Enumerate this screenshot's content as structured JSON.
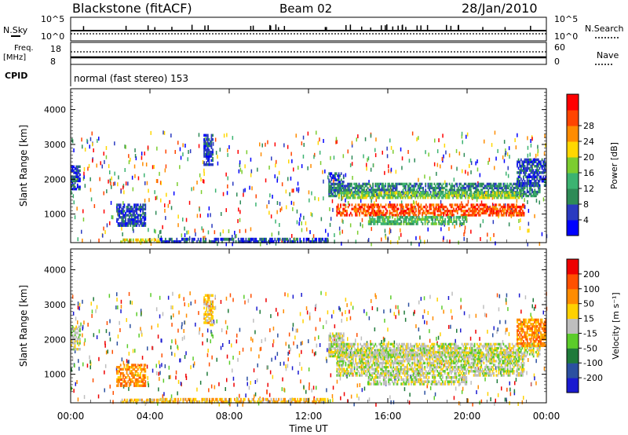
{
  "header": {
    "station": "Blackstone (fitACF)",
    "beam": "Beam 02",
    "date": "28/Jan/2010"
  },
  "top_panels": {
    "nsky": {
      "label": "N.Sky",
      "ticks": [
        "10^5",
        "10^0"
      ]
    },
    "nsearch": {
      "label": "N.Search",
      "ticks": [
        "10^5",
        "10^0"
      ]
    },
    "freq": {
      "label_line1": "Freq.",
      "label_line2": "[MHz]",
      "ticks": [
        "18",
        "8"
      ]
    },
    "nave": {
      "label": "Nave",
      "ticks": [
        "60",
        "0"
      ]
    },
    "cpid": {
      "label": "CPID",
      "mode_text": "normal (fast stereo) 153"
    }
  },
  "x_axis": {
    "title": "Time UT",
    "ticks": [
      "00:00",
      "04:00",
      "08:00",
      "12:00",
      "16:00",
      "20:00",
      "00:00"
    ],
    "hours": [
      0,
      4,
      8,
      12,
      16,
      20,
      24
    ]
  },
  "colors": {
    "power": [
      "#0000ff",
      "#2a3ac0",
      "#2e8b57",
      "#3cb371",
      "#7ccd2f",
      "#ffd700",
      "#ff8c00",
      "#ff4500",
      "#ff0000"
    ],
    "velocity": [
      "#1a1ad0",
      "#2b50a0",
      "#1f7a3a",
      "#5bcc2a",
      "#bebebe",
      "#ffd100",
      "#ff8c00",
      "#ff5000",
      "#ee0000"
    ]
  },
  "chart_data": [
    {
      "type": "heatmap",
      "name": "power",
      "ylabel": "Slant Range [km]",
      "yticks": [
        1000,
        2000,
        3000,
        4000
      ],
      "ylim": [
        180,
        4600
      ],
      "xlim": [
        0,
        24
      ],
      "colorbar_label": "Power [dB]",
      "colorbar_ticks": [
        "28",
        "24",
        "20",
        "16",
        "12",
        "8",
        "4"
      ],
      "colorbar_levels": [
        0,
        4,
        8,
        12,
        16,
        20,
        24,
        28,
        32
      ],
      "regions": [
        {
          "x": [
            0.0,
            0.5
          ],
          "y": [
            1700,
            2400
          ],
          "level": 1
        },
        {
          "x": [
            2.3,
            3.8
          ],
          "y": [
            650,
            1300
          ],
          "level": 1
        },
        {
          "x": [
            6.7,
            7.2
          ],
          "y": [
            2400,
            3300
          ],
          "level": 1
        },
        {
          "x": [
            13.0,
            13.8
          ],
          "y": [
            1600,
            2200
          ],
          "level": 1
        },
        {
          "x": [
            13.0,
            23.7
          ],
          "y": [
            1500,
            1900
          ],
          "level": 2
        },
        {
          "x": [
            13.5,
            22.8
          ],
          "y": [
            1450,
            1650
          ],
          "level": 4
        },
        {
          "x": [
            13.4,
            22.9
          ],
          "y": [
            950,
            1300
          ],
          "level": 7
        },
        {
          "x": [
            15.0,
            20.0
          ],
          "y": [
            700,
            950
          ],
          "level": 3
        },
        {
          "x": [
            22.5,
            24.0
          ],
          "y": [
            1800,
            2600
          ],
          "level": 1
        },
        {
          "x": [
            2.5,
            4.5
          ],
          "y": [
            180,
            300
          ],
          "level": 5
        },
        {
          "x": [
            4.5,
            13.0
          ],
          "y": [
            180,
            320
          ],
          "level": 1
        }
      ]
    },
    {
      "type": "heatmap",
      "name": "velocity",
      "ylabel": "Slant Range [km]",
      "yticks": [
        1000,
        2000,
        3000,
        4000
      ],
      "ylim": [
        180,
        4600
      ],
      "xlim": [
        0,
        24
      ],
      "colorbar_label": "Velocity [m s⁻¹]",
      "colorbar_ticks": [
        "200",
        "100",
        "50",
        "15",
        "-15",
        "-50",
        "-100",
        "-200"
      ],
      "regions": [
        {
          "x": [
            0.0,
            0.5
          ],
          "y": [
            1700,
            2400
          ],
          "level": 4
        },
        {
          "x": [
            2.3,
            3.8
          ],
          "y": [
            650,
            1300
          ],
          "level": 6
        },
        {
          "x": [
            6.7,
            7.2
          ],
          "y": [
            2400,
            3300
          ],
          "level": 5
        },
        {
          "x": [
            13.0,
            13.8
          ],
          "y": [
            1600,
            2200
          ],
          "level": 4
        },
        {
          "x": [
            13.0,
            23.7
          ],
          "y": [
            1500,
            1900
          ],
          "level": 4
        },
        {
          "x": [
            13.4,
            22.9
          ],
          "y": [
            950,
            1650
          ],
          "level": 4
        },
        {
          "x": [
            15.0,
            20.0
          ],
          "y": [
            700,
            950
          ],
          "level": 4
        },
        {
          "x": [
            22.5,
            24.0
          ],
          "y": [
            1800,
            2600
          ],
          "level": 6
        },
        {
          "x": [
            2.5,
            4.5
          ],
          "y": [
            180,
            300
          ],
          "level": 5
        },
        {
          "x": [
            4.5,
            13.0
          ],
          "y": [
            180,
            320
          ],
          "level": 5
        }
      ]
    }
  ]
}
